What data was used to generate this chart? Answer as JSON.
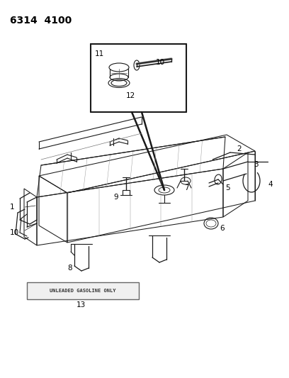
{
  "title": "6314  4100",
  "bg_color": "#ffffff",
  "title_fontsize": 10,
  "label_fontsize": 7.5,
  "unleaded_text": "UNLEADED GASOLINE ONLY",
  "fig_w": 4.08,
  "fig_h": 5.33,
  "dpi": 100
}
